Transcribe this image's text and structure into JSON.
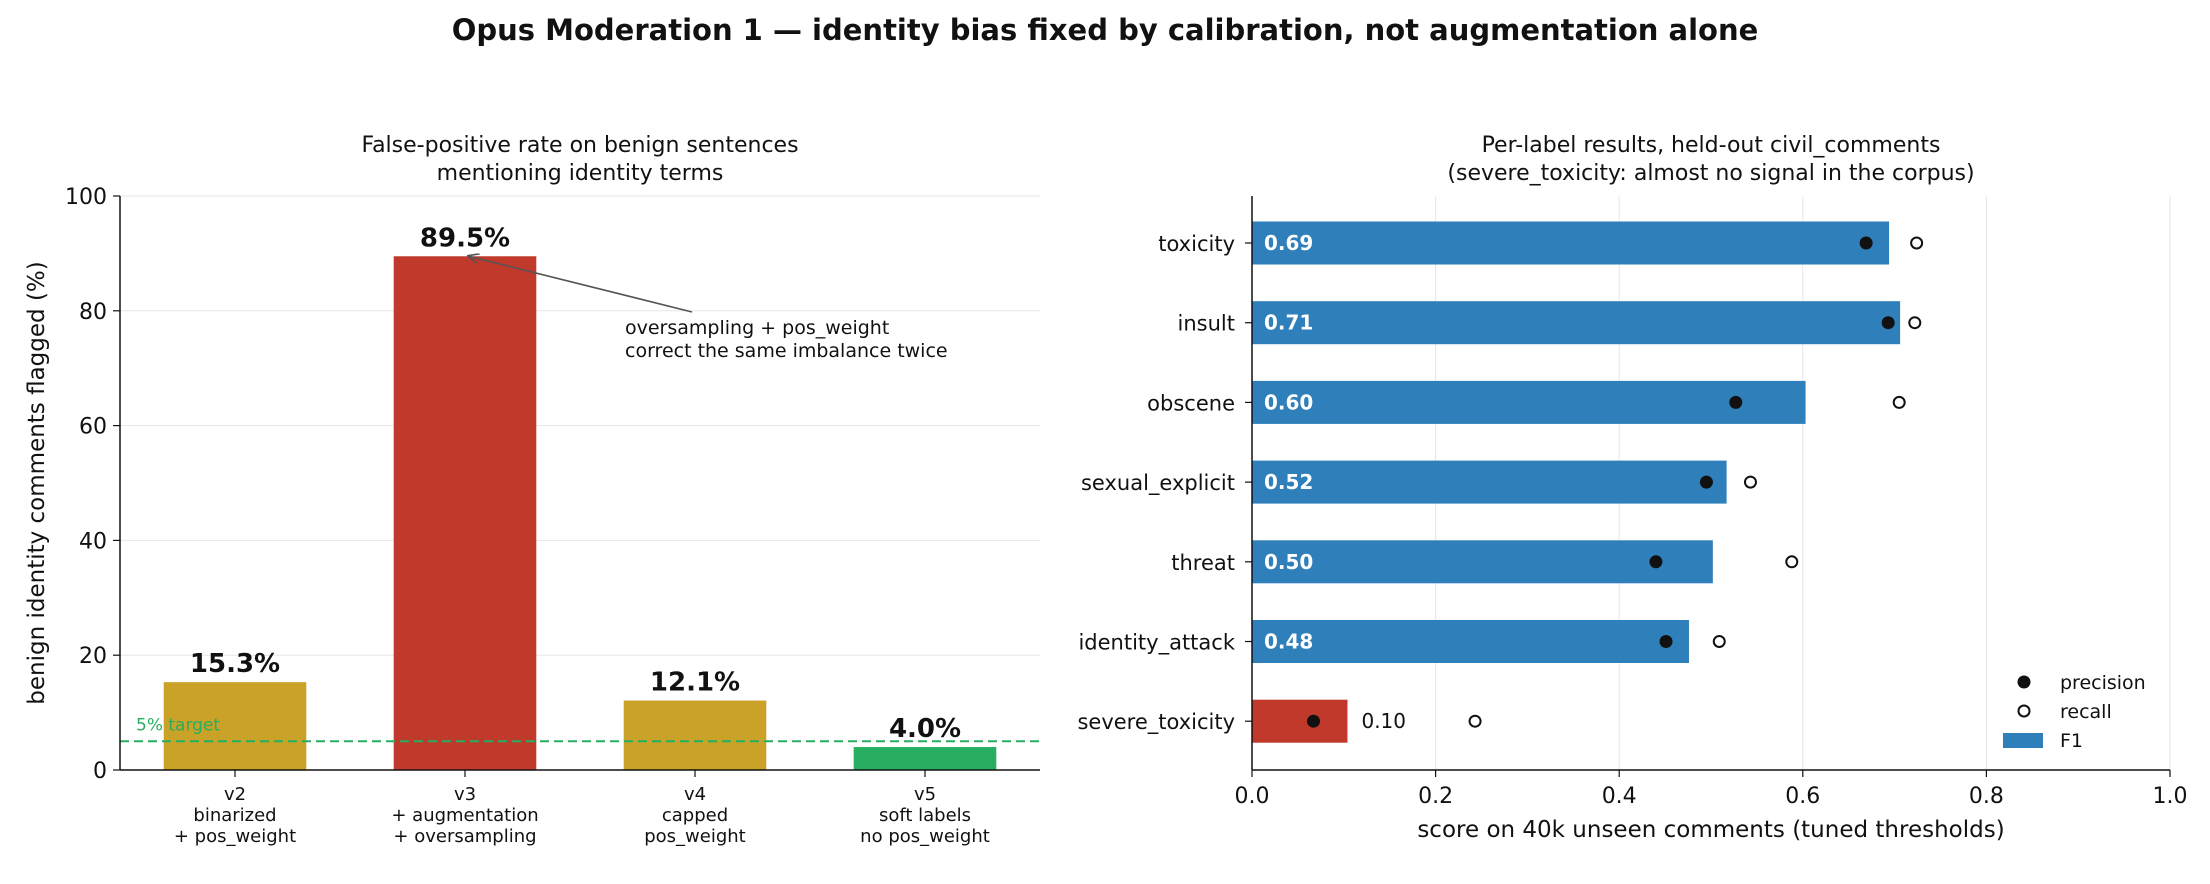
{
  "figure_title": "Opus Moderation 1 — identity bias fixed by calibration, not augmentation alone",
  "colors": {
    "mustard": "#c9a227",
    "red": "#c0392b",
    "green": "#27ae60",
    "blue": "#2e7fba",
    "target_line": "#27ae60",
    "annotation": "#555555"
  },
  "chart_data": [
    {
      "type": "bar",
      "title": "False-positive rate on benign sentences\nmentioning identity terms",
      "xlabel": "",
      "ylabel": "benign identity comments flagged (%)",
      "ylim": [
        0,
        100
      ],
      "yticks": [
        "0",
        "20",
        "40",
        "60",
        "80",
        "100"
      ],
      "categories": [
        "v2\nbinarized\n+ pos_weight",
        "v3\n+ augmentation\n+ oversampling",
        "v4\ncapped\npos_weight",
        "v5\nsoft labels\nno pos_weight"
      ],
      "values": [
        15.3,
        89.5,
        12.1,
        4.0
      ],
      "value_labels": [
        "15.3%",
        "89.5%",
        "12.1%",
        "4.0%"
      ],
      "bar_colors": [
        "#c9a227",
        "#c0392b",
        "#c9a227",
        "#27ae60"
      ],
      "reference_line": {
        "value": 5,
        "label": "5% target"
      },
      "annotation": {
        "text": "oversampling + pos_weight\ncorrect the same imbalance twice",
        "points_to_category": "v3\n+ augmentation\n+ oversampling",
        "points_to_value": 89.5
      },
      "grid": "y"
    },
    {
      "type": "bar",
      "orientation": "horizontal",
      "title": "Per-label results, held-out civil_comments\n(severe_toxicity: almost no signal in the corpus)",
      "xlabel": "score on 40k unseen comments (tuned thresholds)",
      "ylabel": "",
      "xlim": [
        0,
        1.0
      ],
      "xticks": [
        "0.0",
        "0.2",
        "0.4",
        "0.6",
        "0.8",
        "1.0"
      ],
      "categories": [
        "toxicity",
        "insult",
        "obscene",
        "sexual_explicit",
        "threat",
        "identity_attack",
        "severe_toxicity"
      ],
      "series": [
        {
          "name": "F1",
          "marker": "bar",
          "values": [
            0.694,
            0.706,
            0.603,
            0.517,
            0.502,
            0.476,
            0.104
          ]
        },
        {
          "name": "precision",
          "marker": "filled-circle",
          "values": [
            0.669,
            0.693,
            0.527,
            0.495,
            0.44,
            0.451,
            0.067
          ]
        },
        {
          "name": "recall",
          "marker": "open-circle",
          "values": [
            0.724,
            0.722,
            0.705,
            0.543,
            0.588,
            0.509,
            0.243
          ]
        }
      ],
      "value_labels": [
        "0.69",
        "0.71",
        "0.60",
        "0.52",
        "0.50",
        "0.48",
        "0.10"
      ],
      "bar_colors": [
        "#2e7fba",
        "#2e7fba",
        "#2e7fba",
        "#2e7fba",
        "#2e7fba",
        "#2e7fba",
        "#c0392b"
      ],
      "legend": {
        "placement": "lower-right",
        "entries": [
          "precision",
          "recall",
          "F1"
        ]
      },
      "grid": "x"
    }
  ]
}
